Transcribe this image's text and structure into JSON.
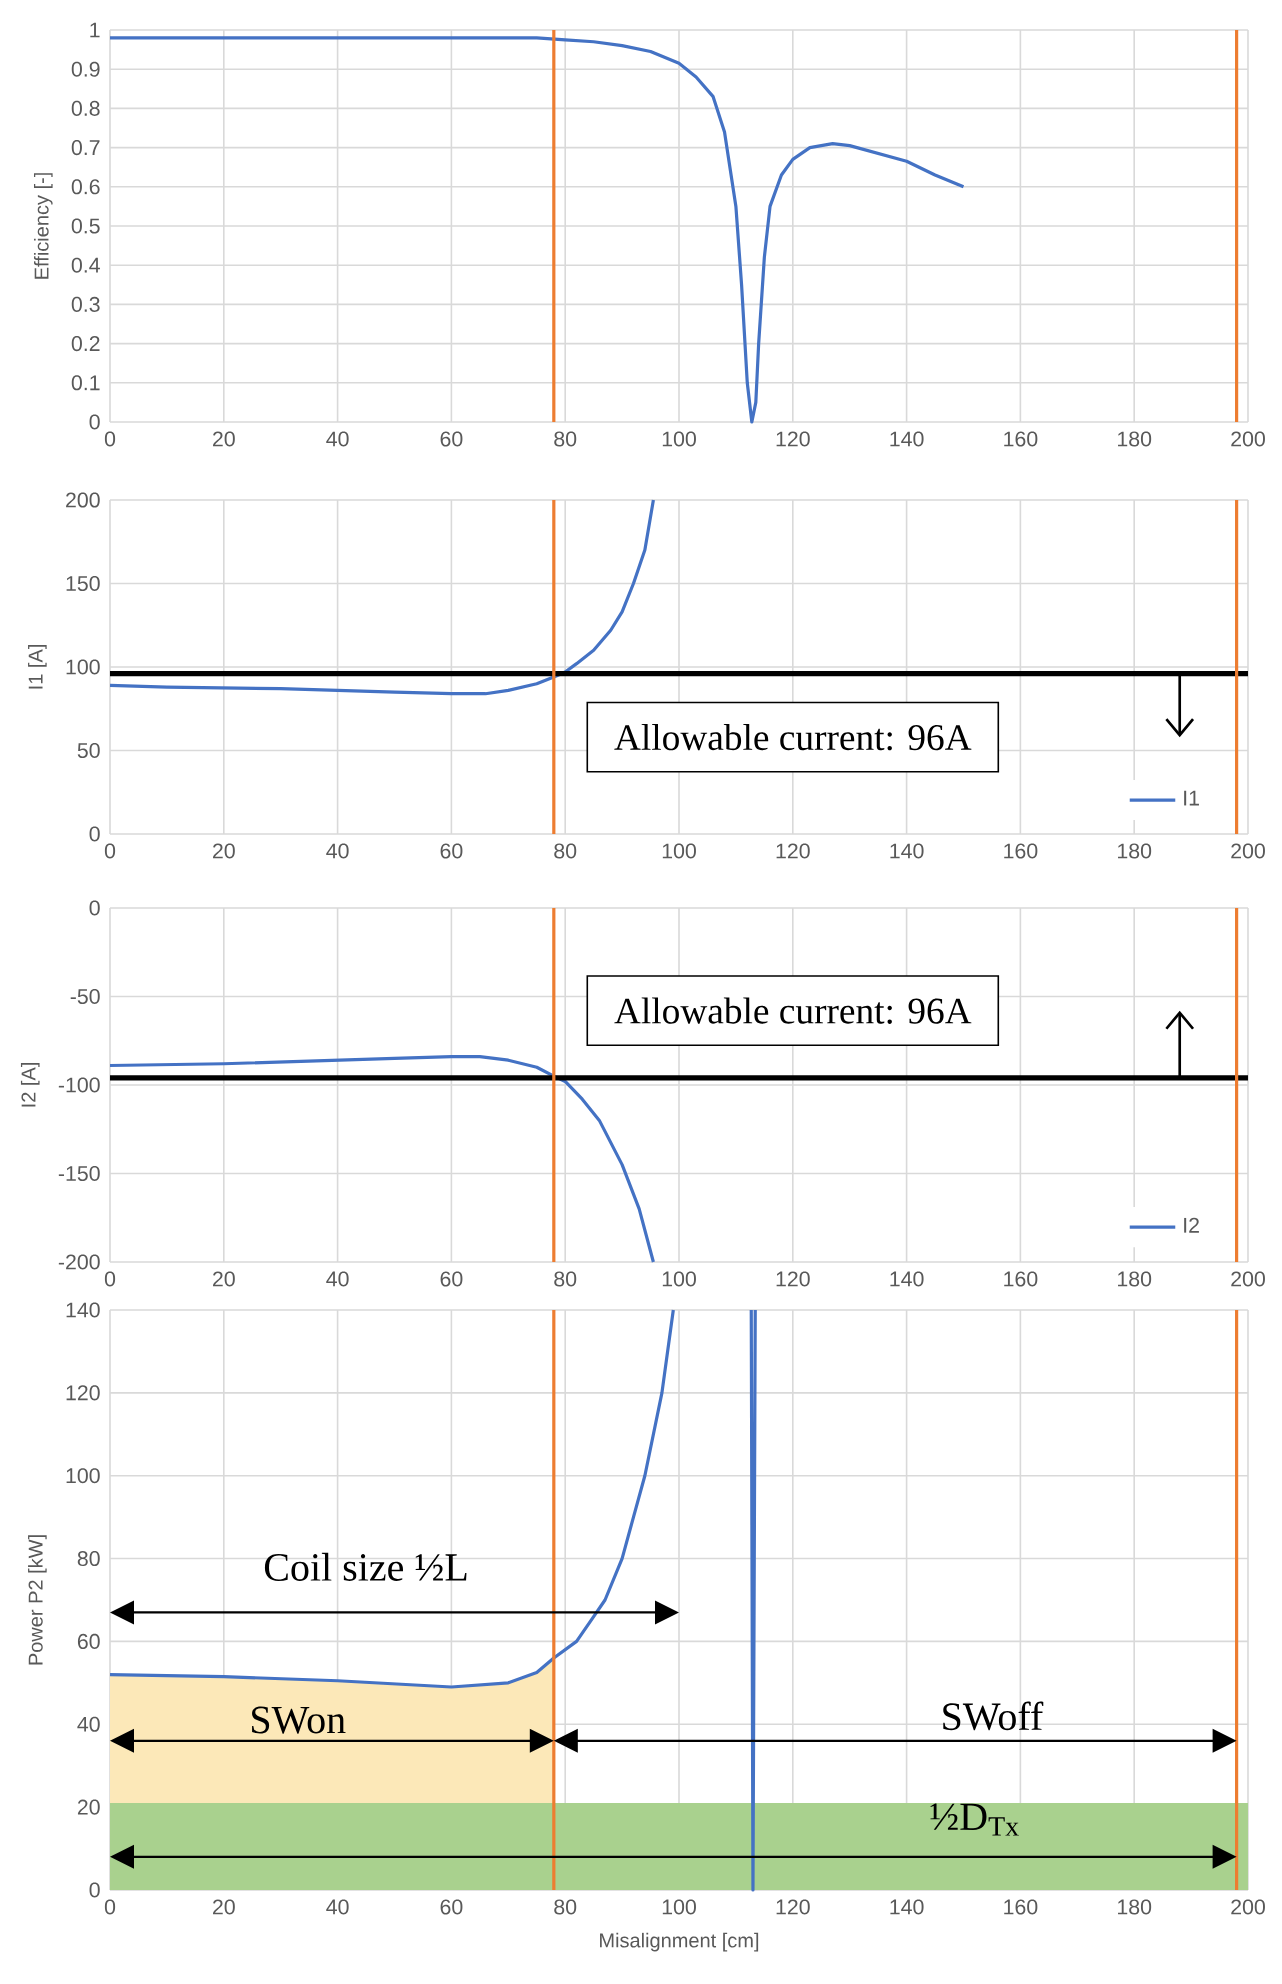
{
  "chart_data": [
    {
      "type": "line",
      "ylabel": "Efficiency [-]",
      "xlim": [
        0,
        200
      ],
      "xticks": [
        0,
        20,
        40,
        60,
        80,
        100,
        120,
        140,
        160,
        180,
        200
      ],
      "ylim": [
        0,
        1
      ],
      "yticks": [
        0,
        0.1,
        0.2,
        0.3,
        0.4,
        0.5,
        0.6,
        0.7,
        0.8,
        0.9,
        1
      ],
      "grid": true,
      "series": [
        {
          "color": "#4472c4",
          "x": [
            0,
            20,
            40,
            60,
            75,
            80,
            85,
            90,
            95,
            100,
            103,
            106,
            108,
            110,
            111,
            112,
            112.8,
            113.5,
            114,
            115,
            116,
            118,
            120,
            123,
            127,
            130,
            135,
            140,
            145,
            150
          ],
          "values": [
            0.98,
            0.98,
            0.98,
            0.98,
            0.98,
            0.975,
            0.97,
            0.96,
            0.945,
            0.915,
            0.88,
            0.83,
            0.74,
            0.55,
            0.35,
            0.1,
            0,
            0.05,
            0.2,
            0.42,
            0.55,
            0.63,
            0.67,
            0.7,
            0.71,
            0.705,
            0.685,
            0.665,
            0.63,
            0.6
          ]
        }
      ],
      "ref_lines": [
        {
          "axis": "x",
          "value": 78,
          "color": "#ed7d31"
        },
        {
          "axis": "x",
          "value": 198,
          "color": "#ed7d31"
        }
      ]
    },
    {
      "type": "line",
      "ylabel": "I1 [A]",
      "xlim": [
        0,
        200
      ],
      "xticks": [
        0,
        20,
        40,
        60,
        80,
        100,
        120,
        140,
        160,
        180,
        200
      ],
      "ylim": [
        0,
        200
      ],
      "yticks": [
        0,
        50,
        100,
        150,
        200
      ],
      "grid": true,
      "legend": "bottom right",
      "series": [
        {
          "name": "I1",
          "color": "#4472c4",
          "x": [
            0,
            10,
            30,
            40,
            50,
            60,
            66,
            70,
            75,
            78,
            80,
            82,
            85,
            88,
            90,
            92,
            94,
            95.5
          ],
          "values": [
            89,
            88,
            87,
            86,
            85,
            84,
            84,
            86,
            90,
            94,
            97,
            102,
            110,
            122,
            133,
            150,
            170,
            200
          ]
        }
      ],
      "ref_lines": [
        {
          "axis": "y",
          "value": 96,
          "color": "#000000"
        },
        {
          "axis": "x",
          "value": 78,
          "color": "#ed7d31"
        },
        {
          "axis": "x",
          "value": 198,
          "color": "#ed7d31"
        }
      ],
      "annotations": [
        "Allowable current: 96A"
      ]
    },
    {
      "type": "line",
      "ylabel": "I2 [A]",
      "xlim": [
        0,
        200
      ],
      "xticks": [
        0,
        20,
        40,
        60,
        80,
        100,
        120,
        140,
        160,
        180,
        200
      ],
      "ylim": [
        -200,
        0
      ],
      "yticks": [
        -200,
        -150,
        -100,
        -50,
        0
      ],
      "grid": true,
      "legend": "bottom right",
      "series": [
        {
          "name": "I2",
          "color": "#4472c4",
          "x": [
            0,
            20,
            40,
            50,
            60,
            65,
            70,
            75,
            78,
            80,
            83,
            86,
            90,
            93,
            95.5
          ],
          "values": [
            -89,
            -88,
            -86,
            -85,
            -84,
            -84,
            -86,
            -90,
            -95,
            -98,
            -108,
            -120,
            -145,
            -170,
            -200
          ]
        }
      ],
      "ref_lines": [
        {
          "axis": "y",
          "value": -96,
          "color": "#000000"
        },
        {
          "axis": "x",
          "value": 78,
          "color": "#ed7d31"
        },
        {
          "axis": "x",
          "value": 198,
          "color": "#ed7d31"
        }
      ],
      "annotations": [
        "Allowable current: 96A"
      ]
    },
    {
      "type": "line",
      "xlabel": "Misalignment [cm]",
      "ylabel": "Power P2 [kW]",
      "xlim": [
        0,
        200
      ],
      "xticks": [
        0,
        20,
        40,
        60,
        80,
        100,
        120,
        140,
        160,
        180,
        200
      ],
      "ylim": [
        0,
        140
      ],
      "yticks": [
        0,
        20,
        40,
        60,
        80,
        100,
        120,
        140
      ],
      "grid": true,
      "series": [
        {
          "type": "area",
          "color": "#fce8b8",
          "x": [
            0,
            20,
            40,
            60,
            70,
            75,
            78
          ],
          "values": [
            52,
            51.5,
            50.5,
            49,
            50,
            52.5,
            56
          ]
        },
        {
          "color": "#4472c4",
          "x": [
            0,
            20,
            40,
            60,
            70,
            75,
            78,
            82,
            85,
            87,
            90,
            92,
            94,
            97,
            99,
            105,
            112.7,
            113,
            113.4
          ],
          "values": [
            52,
            51.5,
            50.5,
            49,
            50,
            52.5,
            56,
            60,
            66,
            70,
            80,
            90,
            100,
            120,
            140,
            null,
            140,
            0,
            140
          ]
        }
      ],
      "bands": [
        {
          "axis": "y",
          "from": 0,
          "to": 21,
          "color": "#a9d18e"
        }
      ],
      "ref_lines": [
        {
          "axis": "x",
          "value": 78,
          "color": "#ed7d31"
        },
        {
          "axis": "x",
          "value": 198,
          "color": "#ed7d31"
        }
      ],
      "annotations": [
        "Coil size ½L",
        "SWon",
        "SWoff",
        "½D$_{Tx}$"
      ]
    }
  ]
}
